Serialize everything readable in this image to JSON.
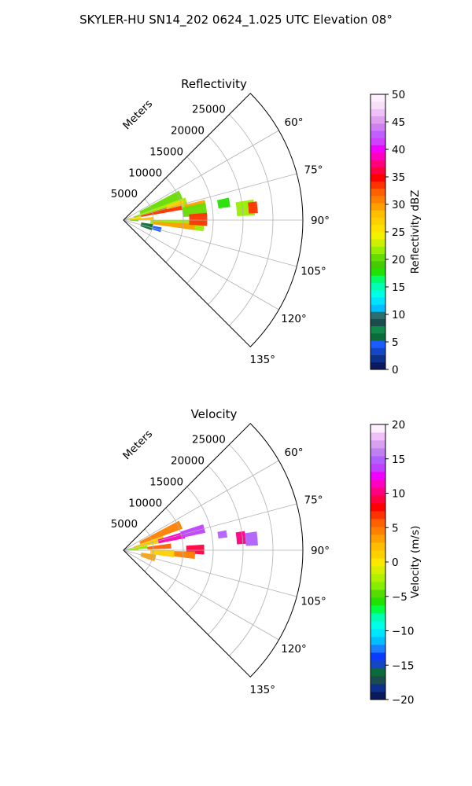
{
  "figure_title": "SKYLER-HU  SN14_202  0624_1.025 UTC Elevation 08°",
  "chart_data": [
    {
      "type": "heatmap",
      "projection": "polar-sector",
      "title": "Reflectivity",
      "radial_label": "Meters",
      "radial_ticks": [
        5000,
        10000,
        15000,
        20000,
        25000
      ],
      "radial_tick_labels": [
        "5000",
        "10000",
        "15000",
        "20000",
        "25000"
      ],
      "rmax": 30000,
      "azimuth_range_deg": [
        45,
        135
      ],
      "azimuth_ticks": [
        60,
        75,
        90,
        105,
        120,
        135
      ],
      "azimuth_tick_labels": [
        "60°",
        "75°",
        "90°",
        "105°",
        "120°",
        "135°"
      ],
      "grid": true,
      "colorbar": {
        "label": "Reflectivity dBZ",
        "min": 0,
        "max": 50,
        "ticks": [
          0,
          5,
          10,
          15,
          20,
          25,
          30,
          35,
          40,
          45,
          50
        ],
        "tick_labels": [
          "0",
          "5",
          "10",
          "15",
          "20",
          "25",
          "30",
          "35",
          "40",
          "45",
          "50"
        ],
        "colors": [
          "#0a1a5c",
          "#0e2f8a",
          "#1547c2",
          "#1a5cff",
          "#0b6b3a",
          "#0f8a4a",
          "#1b4d4d",
          "#2a6e6e",
          "#00bfff",
          "#00e5ff",
          "#00ffe5",
          "#00ffb0",
          "#00ff66",
          "#22e000",
          "#44cc00",
          "#66dd00",
          "#99ee00",
          "#ccf000",
          "#f0f000",
          "#ffe000",
          "#ffd000",
          "#ffbf00",
          "#ffa000",
          "#ff8000",
          "#ff6000",
          "#ff3300",
          "#ff0000",
          "#ff0040",
          "#ff0080",
          "#ff00c0",
          "#f000ff",
          "#d040ff",
          "#c060ff",
          "#d080f0",
          "#e0a0f0",
          "#f0c0f8",
          "#f8e0fa",
          "#fff0ff"
        ]
      },
      "regions": [
        {
          "az": [
            62,
            70
          ],
          "r": [
            3000,
            10500
          ],
          "v": 20
        },
        {
          "az": [
            70,
            79
          ],
          "r": [
            1800,
            11000
          ],
          "v": 22
        },
        {
          "az": [
            74,
            80
          ],
          "r": [
            3000,
            10000
          ],
          "v": 33
        },
        {
          "az": [
            71,
            76
          ],
          "r": [
            7500,
            10500
          ],
          "v": 27
        },
        {
          "az": [
            76,
            80
          ],
          "r": [
            10500,
            14000
          ],
          "v": 30
        },
        {
          "az": [
            79,
            86
          ],
          "r": [
            300,
            3000
          ],
          "v": 25
        },
        {
          "az": [
            84,
            89
          ],
          "r": [
            1000,
            5000
          ],
          "v": 28
        },
        {
          "az": [
            78,
            87
          ],
          "r": [
            10000,
            14000
          ],
          "v": 21
        },
        {
          "az": [
            90,
            98
          ],
          "r": [
            4500,
            13500
          ],
          "v": 22
        },
        {
          "az": [
            93,
            98
          ],
          "r": [
            5000,
            12000
          ],
          "v": 30
        },
        {
          "az": [
            85,
            94
          ],
          "r": [
            11000,
            14000
          ],
          "v": 33
        },
        {
          "az": [
            78,
            83
          ],
          "r": [
            16000,
            18000
          ],
          "v": 18
        },
        {
          "az": [
            81,
            88
          ],
          "r": [
            19000,
            22000
          ],
          "v": 22
        },
        {
          "az": [
            82,
            87
          ],
          "r": [
            21000,
            22500
          ],
          "v": 33
        },
        {
          "az": [
            88,
            95
          ],
          "r": [
            1000,
            2500
          ],
          "v": 20
        },
        {
          "az": [
            98,
            110
          ],
          "r": [
            3000,
            5000
          ],
          "v": 6
        },
        {
          "az": [
            101,
            108
          ],
          "r": [
            5000,
            6500
          ],
          "v": 4
        }
      ]
    },
    {
      "type": "heatmap",
      "projection": "polar-sector",
      "title": "Velocity",
      "radial_label": "Meters",
      "radial_ticks": [
        5000,
        10000,
        15000,
        20000,
        25000
      ],
      "radial_tick_labels": [
        "5000",
        "10000",
        "15000",
        "20000",
        "25000"
      ],
      "rmax": 30000,
      "azimuth_range_deg": [
        45,
        135
      ],
      "azimuth_ticks": [
        60,
        75,
        90,
        105,
        120,
        135
      ],
      "azimuth_tick_labels": [
        "60°",
        "75°",
        "90°",
        "105°",
        "120°",
        "135°"
      ],
      "grid": true,
      "colorbar": {
        "label": "Velocity (m/s)",
        "min": -20,
        "max": 20,
        "ticks": [
          -20,
          -15,
          -10,
          -5,
          0,
          5,
          10,
          15,
          20
        ],
        "tick_labels": [
          "−20",
          "−15",
          "−10",
          "−5",
          "0",
          "5",
          "10",
          "15",
          "20"
        ],
        "colors": [
          "#0a1a5c",
          "#0e2f8a",
          "#1b4d4d",
          "#0b6b3a",
          "#1547c2",
          "#0a3cff",
          "#1a80ff",
          "#00bfff",
          "#00e5ff",
          "#00ffe5",
          "#00ffb0",
          "#00ff44",
          "#22e000",
          "#55dd00",
          "#88ee00",
          "#b0f000",
          "#d8f000",
          "#ffe800",
          "#ffd000",
          "#ffbf00",
          "#ffa000",
          "#ff8000",
          "#ff6000",
          "#ff3300",
          "#ff0000",
          "#ff0040",
          "#ff0080",
          "#ff00c0",
          "#f000ff",
          "#c040ff",
          "#b060ff",
          "#c080f0",
          "#d8a0f0",
          "#f0c0f8",
          "#fff0ff"
        ]
      },
      "regions": [
        {
          "az": [
            62,
            70
          ],
          "r": [
            3000,
            10500
          ],
          "v": 5
        },
        {
          "az": [
            70,
            79
          ],
          "r": [
            1800,
            7000
          ],
          "v": 1
        },
        {
          "az": [
            73,
            79
          ],
          "r": [
            6000,
            10500
          ],
          "v": 11
        },
        {
          "az": [
            72,
            78
          ],
          "r": [
            10000,
            14000
          ],
          "v": 14
        },
        {
          "az": [
            79,
            86
          ],
          "r": [
            300,
            4000
          ],
          "v": -3
        },
        {
          "az": [
            82,
            88
          ],
          "r": [
            4000,
            8000
          ],
          "v": 6
        },
        {
          "az": [
            86,
            93
          ],
          "r": [
            10500,
            13500
          ],
          "v": 9
        },
        {
          "az": [
            90,
            98
          ],
          "r": [
            4500,
            8500
          ],
          "v": 1
        },
        {
          "az": [
            91,
            97
          ],
          "r": [
            8500,
            12000
          ],
          "v": 4
        },
        {
          "az": [
            81,
            87
          ],
          "r": [
            19000,
            20500
          ],
          "v": 10
        },
        {
          "az": [
            82,
            88
          ],
          "r": [
            20500,
            22500
          ],
          "v": 15
        },
        {
          "az": [
            79,
            83
          ],
          "r": [
            16000,
            17500
          ],
          "v": 15
        },
        {
          "az": [
            85,
            91
          ],
          "r": [
            800,
            2500
          ],
          "v": 2
        },
        {
          "az": [
            98,
            110
          ],
          "r": [
            3000,
            5500
          ],
          "v": 3
        }
      ]
    }
  ]
}
